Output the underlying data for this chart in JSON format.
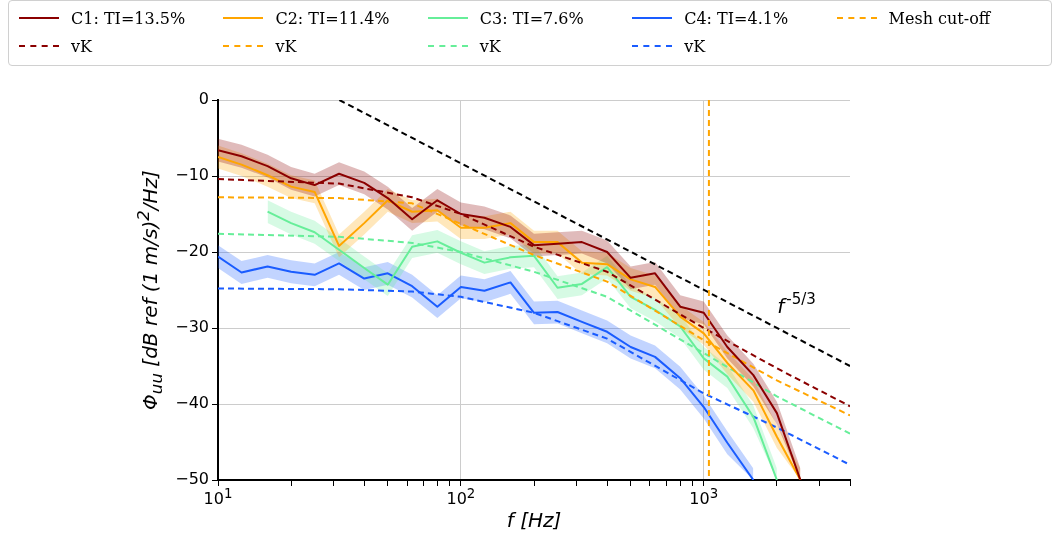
{
  "chart_data": {
    "type": "line",
    "xlabel": "f [Hz]",
    "ylabel": "Φ$_{uu}$ [dB ref (1 m/s)$^{2}$/Hz]",
    "log": "x",
    "grid": true,
    "legend": "top",
    "xlim": [
      10,
      4000
    ],
    "xticks": [
      {
        "value": 10,
        "label": "10$^{1}$"
      },
      {
        "value": 20,
        "label": null
      },
      {
        "value": 30,
        "label": null
      },
      {
        "value": 40,
        "label": null
      },
      {
        "value": 50,
        "label": null
      },
      {
        "value": 60,
        "label": null
      },
      {
        "value": 70,
        "label": null
      },
      {
        "value": 80,
        "label": null
      },
      {
        "value": 90,
        "label": null
      },
      {
        "value": 100,
        "label": "10$^{2}$"
      },
      {
        "value": 200,
        "label": null
      },
      {
        "value": 300,
        "label": null
      },
      {
        "value": 400,
        "label": null
      },
      {
        "value": 500,
        "label": null
      },
      {
        "value": 600,
        "label": null
      },
      {
        "value": 700,
        "label": null
      },
      {
        "value": 800,
        "label": null
      },
      {
        "value": 900,
        "label": null
      },
      {
        "value": 1000,
        "label": "10$^{3}$"
      },
      {
        "value": 2000,
        "label": null
      },
      {
        "value": 3000,
        "label": null
      },
      {
        "value": 4000,
        "label": null
      }
    ],
    "ylim": [
      -50,
      0
    ],
    "yticks": [
      {
        "value": -50,
        "label": "−50"
      },
      {
        "value": -40,
        "label": "−40"
      },
      {
        "value": -30,
        "label": "−30"
      },
      {
        "value": -20,
        "label": "−20"
      },
      {
        "value": -10,
        "label": "−10"
      },
      0
    ],
    "x": [
      10,
      12.5,
      16,
      20,
      25,
      31.5,
      40,
      50,
      63,
      80,
      100,
      125,
      160,
      200,
      250,
      315,
      400,
      500,
      630,
      800,
      1000,
      1250,
      1600,
      2000,
      2500
    ],
    "series": [
      {
        "name": "C1: TI=13.5%",
        "color": "#8b0000",
        "line_style": "solid",
        "values": [
          -6.6,
          -7.4,
          -8.7,
          -10.3,
          -11.2,
          -9.7,
          -10.9,
          -12.9,
          -15.7,
          -13.2,
          -15.0,
          -15.5,
          -16.7,
          -19.1,
          -18.9,
          -18.7,
          -20.0,
          -23.4,
          -22.8,
          -27.2,
          -28.0,
          -32.5,
          -36.2,
          -41.2,
          -50
        ],
        "lower": [
          -8.1,
          -8.9,
          -10.2,
          -11.8,
          -12.7,
          -11.2,
          -12.4,
          -14.4,
          -17.2,
          -14.7,
          -16.5,
          -17.0,
          -18.2,
          -20.6,
          -20.4,
          -20.2,
          -21.5,
          -24.9,
          -24.3,
          -28.7,
          -29.5,
          -34.0,
          -37.7,
          -42.7,
          -50
        ],
        "upper": [
          -5.1,
          -5.9,
          -7.2,
          -8.8,
          -9.7,
          -8.2,
          -9.4,
          -11.4,
          -14.2,
          -11.7,
          -13.5,
          -14.0,
          -15.2,
          -17.6,
          -17.4,
          -17.2,
          -18.5,
          -21.9,
          -21.3,
          -25.7,
          -26.5,
          -31.0,
          -34.7,
          -39.7,
          -48.5
        ]
      },
      {
        "name": "vK",
        "color": "#8b0000",
        "line_style": "dashed",
        "x": [
          10,
          31.5,
          63,
          100,
          200,
          400,
          1000,
          2000,
          4000
        ],
        "values": [
          -10.4,
          -11.0,
          -12.8,
          -15.0,
          -19.3,
          -22.6,
          -30.0,
          -35.3,
          -40.3
        ]
      },
      {
        "name": "C2: TI=11.4%",
        "color": "#ffa500",
        "line_style": "solid",
        "values": [
          -7.5,
          -8.5,
          -9.9,
          -11.4,
          -12.1,
          -19.2,
          -16.2,
          -13.2,
          -14.7,
          -14.5,
          -16.8,
          -16.8,
          -16.2,
          -18.7,
          -18.7,
          -21.4,
          -21.6,
          -23.6,
          -24.6,
          -28.5,
          -30.7,
          -34.6,
          -38.2,
          -44.3,
          -50
        ],
        "lower": [
          -9.0,
          -10.0,
          -11.4,
          -12.9,
          -13.6,
          -20.7,
          -17.7,
          -14.7,
          -16.2,
          -16.0,
          -18.3,
          -18.3,
          -17.7,
          -20.2,
          -20.2,
          -22.9,
          -23.1,
          -25.1,
          -26.1,
          -30.0,
          -32.2,
          -36.1,
          -39.7,
          -45.8,
          -50
        ],
        "upper": [
          -6.0,
          -7.0,
          -8.4,
          -9.9,
          -10.6,
          -17.7,
          -14.7,
          -11.7,
          -13.2,
          -13.0,
          -15.3,
          -15.3,
          -14.7,
          -17.2,
          -17.2,
          -19.9,
          -20.1,
          -22.1,
          -23.1,
          -27.0,
          -29.2,
          -33.1,
          -36.7,
          -42.8,
          -48.5
        ]
      },
      {
        "name": "vK",
        "color": "#ffa500",
        "line_style": "dashed",
        "x": [
          10,
          31.5,
          63,
          100,
          200,
          400,
          1000,
          2000,
          4000
        ],
        "values": [
          -12.8,
          -12.9,
          -13.6,
          -16.3,
          -20.4,
          -23.9,
          -31.6,
          -36.9,
          -41.5
        ]
      },
      {
        "name": "C3: TI=7.6%",
        "color": "#66ee99",
        "line_style": "solid",
        "values": [
          null,
          null,
          -14.7,
          -16.2,
          -17.4,
          -19.7,
          -22.1,
          -24.3,
          -19.3,
          -18.6,
          -20.1,
          -21.4,
          -20.7,
          -20.5,
          -24.7,
          -24.2,
          -22.0,
          -25.9,
          -27.6,
          -29.8,
          -34.0,
          -36.4,
          -41.7,
          -50,
          null
        ],
        "lower": [
          null,
          null,
          -16.2,
          -17.7,
          -18.9,
          -21.2,
          -23.6,
          -25.8,
          -20.8,
          -20.1,
          -21.6,
          -22.9,
          -22.2,
          -22.0,
          -26.2,
          -25.7,
          -23.5,
          -27.4,
          -29.1,
          -31.3,
          -35.5,
          -37.9,
          -43.2,
          -50,
          null
        ],
        "upper": [
          null,
          null,
          -13.2,
          -14.7,
          -15.9,
          -18.2,
          -20.6,
          -22.8,
          -17.8,
          -17.1,
          -18.6,
          -19.9,
          -19.2,
          -19.0,
          -23.2,
          -22.7,
          -20.5,
          -24.4,
          -26.1,
          -28.3,
          -32.5,
          -34.9,
          -40.2,
          -48.5,
          null
        ]
      },
      {
        "name": "vK",
        "color": "#66ee99",
        "line_style": "dashed",
        "x": [
          10,
          31.5,
          63,
          100,
          200,
          400,
          1000,
          2000,
          4000
        ],
        "values": [
          -17.6,
          -18.0,
          -18.8,
          -20.0,
          -22.6,
          -25.9,
          -33.3,
          -39.0,
          -43.9
        ]
      },
      {
        "name": "C4: TI=4.1%",
        "color": "#1a5cff",
        "line_style": "solid",
        "values": [
          -20.6,
          -22.7,
          -21.9,
          -22.6,
          -23.0,
          -21.5,
          -23.5,
          -22.8,
          -24.5,
          -27.2,
          -24.6,
          -25.1,
          -24.0,
          -28.0,
          -27.9,
          -29.2,
          -30.5,
          -32.5,
          -33.8,
          -36.6,
          -40.4,
          -45.1,
          -50,
          null,
          null
        ],
        "lower": [
          -22.1,
          -24.2,
          -23.4,
          -24.1,
          -24.5,
          -23.0,
          -25.0,
          -24.3,
          -26.0,
          -28.7,
          -26.1,
          -26.6,
          -25.5,
          -29.5,
          -29.4,
          -30.7,
          -32.0,
          -34.0,
          -35.3,
          -38.1,
          -41.9,
          -46.6,
          -50,
          null,
          null
        ],
        "upper": [
          -19.1,
          -21.2,
          -20.4,
          -21.1,
          -21.5,
          -20.0,
          -22.0,
          -21.3,
          -23.0,
          -25.7,
          -23.1,
          -23.6,
          -22.5,
          -26.5,
          -26.4,
          -27.7,
          -29.0,
          -31.0,
          -32.3,
          -35.1,
          -38.9,
          -43.6,
          -48.5,
          null,
          null
        ]
      },
      {
        "name": "vK",
        "color": "#1a5cff",
        "line_style": "dashed",
        "x": [
          10,
          31.5,
          63,
          100,
          200,
          400,
          1000,
          2000,
          4000
        ],
        "values": [
          -24.8,
          -24.9,
          -25.2,
          -25.9,
          -28.0,
          -31.4,
          -38.6,
          -43.1,
          -48.0
        ]
      },
      {
        "color": "#000000",
        "line_style": "dashed",
        "x": [
          31.6,
          4000
        ],
        "values": [
          0,
          -35
        ]
      }
    ],
    "ref_lines": [
      {
        "axis": "x",
        "value": 1050,
        "label": "Mesh cut-off",
        "color": "#ffa500",
        "line_style": "dashed"
      }
    ],
    "annotations": [
      "f$^{-5/3}$"
    ]
  }
}
